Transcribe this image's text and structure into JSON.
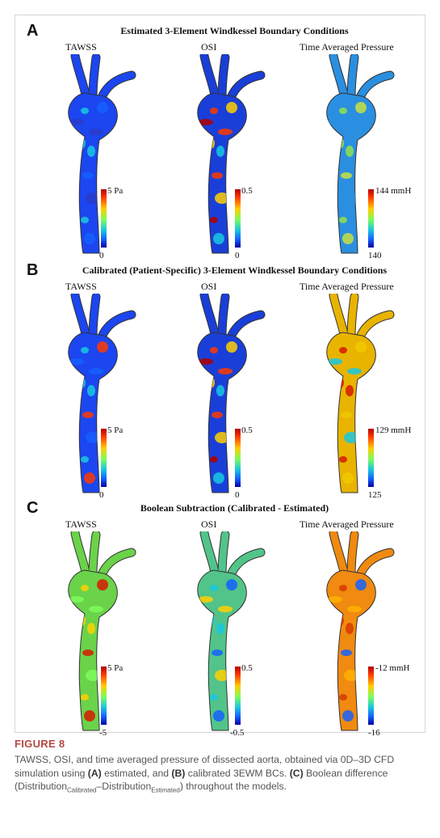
{
  "figure": {
    "colormap_stops": [
      "#0000a0",
      "#1560ff",
      "#19c8e0",
      "#7cfc5a",
      "#ffd000",
      "#ff3a00",
      "#b30000"
    ],
    "panels": [
      {
        "letter": "A",
        "title": "Estimated 3-Element Windkessel Boundary Conditions",
        "maps": [
          {
            "label": "TAWSS",
            "cbar_max": "5 Pa",
            "cbar_min": "0",
            "base_color": "#1b46f0",
            "accents": [
              "#19c8e0",
              "#1560ff",
              "#2a3cc8"
            ]
          },
          {
            "label": "OSI",
            "cbar_max": "0.5",
            "cbar_min": "0",
            "base_color": "#1a3fd8",
            "accents": [
              "#ff3a00",
              "#ffd000",
              "#b30000",
              "#19c8e0"
            ]
          },
          {
            "label": "Time Averaged Pressure",
            "cbar_max": "144 mmH",
            "cbar_min": "140",
            "base_color": "#2a8fe0",
            "accents": [
              "#8fe04a",
              "#c8e040",
              "#2a8fe0"
            ]
          }
        ]
      },
      {
        "letter": "B",
        "title": "Calibrated (Patient-Specific) 3-Element Windkessel Boundary Conditions",
        "maps": [
          {
            "label": "TAWSS",
            "cbar_max": "5 Pa",
            "cbar_min": "0",
            "base_color": "#1b46f0",
            "accents": [
              "#19c8e0",
              "#ff3a00",
              "#1560ff"
            ]
          },
          {
            "label": "OSI",
            "cbar_max": "0.5",
            "cbar_min": "0",
            "base_color": "#1a3fd8",
            "accents": [
              "#ff3a00",
              "#ffd000",
              "#b30000",
              "#19c8e0"
            ]
          },
          {
            "label": "Time Averaged Pressure",
            "cbar_max": "129 mmH",
            "cbar_min": "125",
            "base_color": "#e8b400",
            "accents": [
              "#d61a00",
              "#f0c800",
              "#19c8e0"
            ]
          }
        ]
      },
      {
        "letter": "C",
        "title": "Boolean Subtraction (Calibrated - Estimated)",
        "maps": [
          {
            "label": "TAWSS",
            "cbar_max": "5 Pa",
            "cbar_min": "-5",
            "base_color": "#6ad34a",
            "accents": [
              "#ffd000",
              "#d61a00",
              "#7cfc5a"
            ]
          },
          {
            "label": "OSI",
            "cbar_max": "0.5",
            "cbar_min": "-0.5",
            "base_color": "#52c48a",
            "accents": [
              "#19c8e0",
              "#1560ff",
              "#ffd000"
            ]
          },
          {
            "label": "Time Averaged Pressure",
            "cbar_max": "-12 mmH",
            "cbar_min": "-16",
            "base_color": "#f08a10",
            "accents": [
              "#d63a00",
              "#1560ff",
              "#ffb000"
            ]
          }
        ]
      }
    ]
  },
  "caption": {
    "label": "FIGURE 8",
    "t1": "TAWSS, OSI, and time averaged pressure of dissected aorta, obtained via 0D–3D CFD simulation using ",
    "b1": "(A)",
    "t2": " estimated, and ",
    "b2": "(B)",
    "t3": " calibrated 3EWM BCs. ",
    "b3": "(C)",
    "t4": " Boolean difference (Distribution",
    "sub1": "Calibrated",
    "t5": "–Distribution",
    "sub2": "Estimated",
    "t6": ") throughout the models."
  }
}
